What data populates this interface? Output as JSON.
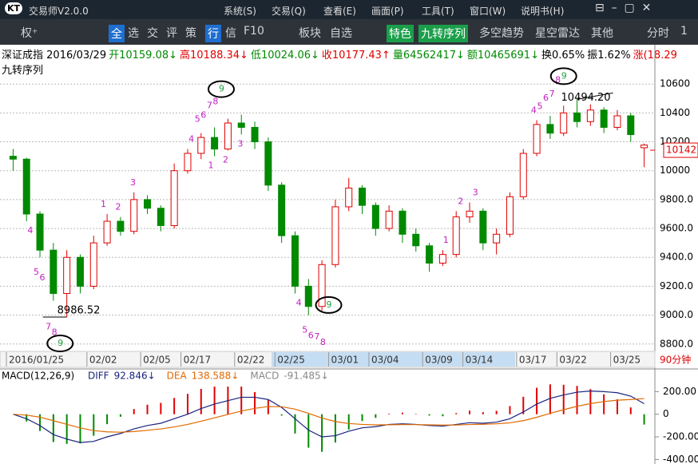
{
  "app": {
    "logo": "KT",
    "title": "交易师V2.0.0",
    "menu": [
      "系统(S)",
      "交易(Q)",
      "查看(E)",
      "画面(P)",
      "工具(T)",
      "窗口(W)",
      "说明书(H)"
    ],
    "toolbar": [
      "权⁺",
      "全",
      "选",
      "交",
      "评",
      "策",
      "行",
      "信",
      "F10",
      "板块",
      "自选",
      "特色",
      "九转序列",
      "多空趋势",
      "星空雷达",
      "其他",
      "分时",
      "1"
    ]
  },
  "info": {
    "name": "深证成指",
    "date": "2016/03/29",
    "fields": [
      "开10159.08↓",
      "高10188.34↓",
      "低10024.06↓",
      "收10177.43↑",
      "量64562417↓",
      "额10465691↓",
      "换0.65%",
      "振1.62%",
      "涨(18.29"
    ],
    "indicator": "九转序列"
  },
  "chart_data": [
    {
      "type": "candlestick",
      "period": "90分钟",
      "categories": [
        "2016/01/25",
        null,
        null,
        null,
        null,
        null,
        "02/02",
        null,
        null,
        null,
        "02/05",
        null,
        null,
        "02/17",
        null,
        null,
        null,
        "02/22",
        null,
        null,
        "02/25",
        null,
        null,
        null,
        "03/01",
        null,
        null,
        "03/04",
        null,
        null,
        null,
        "03/09",
        null,
        null,
        "03/14",
        null,
        null,
        null,
        "03/17",
        null,
        null,
        "03/22",
        null,
        null,
        null,
        "03/25",
        null,
        null
      ],
      "open": [
        10100,
        10080,
        9700,
        9450,
        9150,
        9400,
        9200,
        9500,
        9650,
        9580,
        9800,
        9740,
        9620,
        10000,
        10120,
        10230,
        10150,
        10330,
        10300,
        10200,
        9900,
        9550,
        9200,
        9060,
        9350,
        9750,
        9880,
        9760,
        9600,
        9720,
        9560,
        9480,
        9360,
        9420,
        9680,
        9720,
        9500,
        9560,
        9820,
        10120,
        10320,
        10260,
        10400,
        10340,
        10420,
        10300,
        10380,
        10159.08
      ],
      "close": [
        10080,
        9700,
        9450,
        9150,
        9400,
        9200,
        9500,
        9650,
        9580,
        9800,
        9740,
        9620,
        10000,
        10120,
        10230,
        10150,
        10330,
        10300,
        10200,
        9900,
        9550,
        9200,
        9060,
        9350,
        9750,
        9880,
        9760,
        9600,
        9720,
        9560,
        9480,
        9360,
        9420,
        9680,
        9720,
        9500,
        9560,
        9820,
        10120,
        10320,
        10260,
        10400,
        10340,
        10420,
        10300,
        10380,
        10250,
        10177.43
      ],
      "high": [
        10150,
        10090,
        9720,
        9500,
        9450,
        9420,
        9550,
        9700,
        9680,
        9850,
        9830,
        9760,
        10050,
        10150,
        10260,
        10300,
        10360,
        10388,
        10340,
        10230,
        9920,
        9580,
        9250,
        9380,
        9800,
        9950,
        9900,
        9780,
        9760,
        9740,
        9600,
        9500,
        9450,
        9720,
        9780,
        9740,
        9600,
        9850,
        10150,
        10350,
        10380,
        10450,
        10494.2,
        10460,
        10440,
        10420,
        10400,
        10188.34
      ],
      "low": [
        10000,
        9650,
        9400,
        9100,
        8986.52,
        9150,
        9180,
        9480,
        9550,
        9560,
        9700,
        9580,
        9600,
        9980,
        10080,
        10100,
        10140,
        10250,
        10150,
        9860,
        9500,
        9150,
        9000,
        9030,
        9330,
        9720,
        9700,
        9550,
        9580,
        9500,
        9440,
        9300,
        9340,
        9400,
        9640,
        9450,
        9420,
        9540,
        9800,
        10100,
        10220,
        10240,
        10300,
        10310,
        10260,
        10280,
        10200,
        10024.06
      ],
      "ylim": [
        8760,
        10850
      ],
      "yticks": [
        {
          "value": 10600,
          "label": "10600"
        },
        {
          "value": 10400,
          "label": "10400"
        },
        {
          "value": 10200,
          "label": "10200"
        },
        {
          "value": 10000,
          "label": "10000"
        },
        {
          "value": 9800,
          "label": "9800.0"
        },
        {
          "value": 9600,
          "label": "9600.0"
        },
        {
          "value": 9400,
          "label": "9400.0"
        },
        {
          "value": 9200,
          "label": "9200.0"
        },
        {
          "value": 9000,
          "label": "9000.0"
        },
        {
          "value": 8800,
          "label": "8800.0"
        }
      ],
      "grid": true,
      "up_color": "#e00000",
      "down_color": "#008a00",
      "low_mark": {
        "value": 8986.52,
        "label": "8986.52"
      },
      "high_mark": {
        "value": 10494.2,
        "label": "10494.20"
      },
      "last_price": {
        "value": 10142,
        "label": "10142"
      },
      "nine_turn": [
        {
          "side": "buy",
          "labels": [
            "1",
            "2",
            "3",
            "4",
            "5",
            "6",
            "7",
            "8",
            "9"
          ]
        },
        {
          "side": "sell",
          "labels": [
            "1",
            "2",
            "3",
            "4",
            "5",
            "6",
            "7",
            "8",
            "9"
          ]
        },
        {
          "side": "buy",
          "labels": [
            "1",
            "2",
            "3",
            "4",
            "5",
            "6",
            "7",
            "8",
            "9"
          ]
        },
        {
          "side": "sell",
          "labels": [
            "1",
            "2",
            "3",
            "4",
            "5",
            "6",
            "7",
            "8",
            "9"
          ]
        }
      ]
    },
    {
      "type": "macd",
      "title": "MACD(12,26,9)",
      "series": [
        {
          "name": "DIFF",
          "color": "#1a237e",
          "legend_value": "92.846↓",
          "values": [
            0,
            -40,
            -100,
            -180,
            -220,
            -250,
            -240,
            -200,
            -170,
            -130,
            -100,
            -80,
            -40,
            0,
            50,
            90,
            120,
            150,
            150,
            130,
            60,
            -40,
            -140,
            -200,
            -190,
            -150,
            -120,
            -110,
            -90,
            -85,
            -90,
            -100,
            -105,
            -90,
            -75,
            -80,
            -70,
            -40,
            20,
            90,
            140,
            170,
            195,
            205,
            200,
            190,
            160,
            92.846
          ]
        },
        {
          "name": "DEA",
          "color": "#e06a00",
          "legend_value": "138.588↓",
          "values": [
            0,
            -8,
            -26,
            -57,
            -89,
            -121,
            -145,
            -156,
            -159,
            -153,
            -142,
            -130,
            -112,
            -90,
            -62,
            -32,
            -2,
            28,
            52,
            68,
            66,
            45,
            8,
            -34,
            -65,
            -82,
            -90,
            -94,
            -93,
            -92,
            -92,
            -94,
            -96,
            -95,
            -91,
            -89,
            -85,
            -76,
            -57,
            -27,
            8,
            40,
            70,
            94,
            112,
            124,
            130,
            138.588
          ]
        },
        {
          "name": "MACD",
          "color": "#888888",
          "legend_value": "-91.485↓",
          "values": [
            0,
            -64,
            -148,
            -246,
            -262,
            -258,
            -190,
            -88,
            -22,
            46,
            84,
            100,
            144,
            180,
            224,
            244,
            244,
            244,
            196,
            124,
            -12,
            -170,
            -296,
            -332,
            -250,
            -136,
            -60,
            -32,
            6,
            14,
            4,
            -12,
            -18,
            10,
            32,
            18,
            30,
            72,
            154,
            234,
            264,
            260,
            250,
            222,
            176,
            132,
            60,
            -91.485
          ]
        }
      ],
      "ylim": [
        -440,
        273
      ],
      "yticks": [
        {
          "value": 200,
          "label": "200.00"
        },
        0,
        {
          "value": -200,
          "label": "-200.00"
        },
        {
          "value": -400,
          "label": "-400.00"
        }
      ],
      "up_color": "#e00000",
      "down_color": "#008a00"
    }
  ]
}
